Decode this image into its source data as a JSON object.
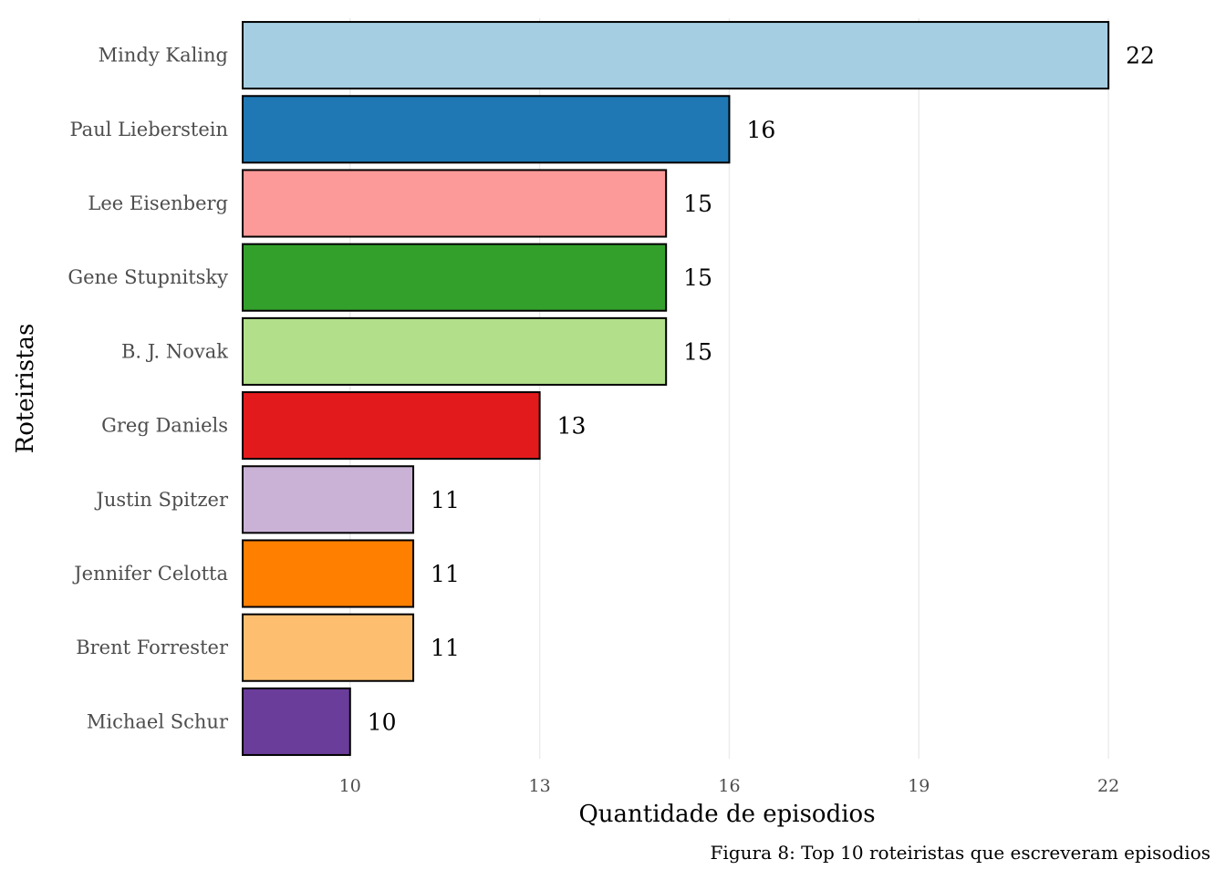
{
  "chart_data": {
    "type": "bar",
    "orientation": "horizontal",
    "categories": [
      "Mindy Kaling",
      "Paul Lieberstein",
      "Lee Eisenberg",
      "Gene Stupnitsky",
      "B. J. Novak",
      "Greg Daniels",
      "Justin Spitzer",
      "Jennifer Celotta",
      "Brent Forrester",
      "Michael Schur"
    ],
    "values": [
      22,
      16,
      15,
      15,
      15,
      13,
      11,
      11,
      11,
      10
    ],
    "data_labels": [
      "22",
      "16",
      "15",
      "15",
      "15",
      "13",
      "11",
      "11",
      "11",
      "10"
    ],
    "colors": [
      "#a6cee3",
      "#1f78b4",
      "#fb9a99",
      "#33a02c",
      "#b2df8a",
      "#e31a1c",
      "#cab2d6",
      "#ff7f00",
      "#fdbf6f",
      "#6a3d9a"
    ],
    "bar_outline": "#000000",
    "title": "",
    "xlabel": "Quantidade de episodios",
    "ylabel": "Roteiristas",
    "caption": "Figura 8: Top 10 roteiristas que escreveram episodios",
    "xlim": [
      8.3,
      23.6
    ],
    "xticks": [
      10,
      13,
      16,
      19,
      22
    ],
    "xtick_labels": [
      "10",
      "13",
      "16",
      "19",
      "22"
    ],
    "grid": "vertical-major",
    "legend": "none"
  }
}
